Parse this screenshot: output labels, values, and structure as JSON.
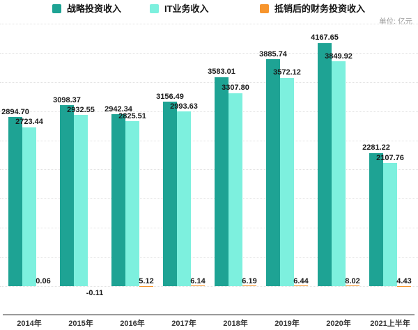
{
  "chart_data": {
    "type": "bar",
    "title": "",
    "unit": "单位: 亿元",
    "categories": [
      "2014年",
      "2015年",
      "2016年",
      "2017年",
      "2018年",
      "2019年",
      "2020年",
      "2021上半年"
    ],
    "series": [
      {
        "name": "战略投资收入",
        "color": "#1ea394",
        "values": [
          2894.7,
          3098.37,
          2942.34,
          3156.49,
          3583.01,
          3885.74,
          4167.65,
          2281.22
        ]
      },
      {
        "name": "IT业务收入",
        "color": "#7df0de",
        "values": [
          2723.44,
          2932.55,
          2825.51,
          2993.63,
          3307.8,
          3572.12,
          3849.92,
          2107.76
        ]
      },
      {
        "name": "抵销后的财务投资收入",
        "color": "#f7952d",
        "values": [
          0.06,
          -0.11,
          5.12,
          6.14,
          6.19,
          6.44,
          8.02,
          4.43
        ]
      }
    ],
    "ylim": [
      -500,
      4500
    ],
    "grid_step": 500,
    "grid": "on",
    "legend_position": "top",
    "value_label_decimals": 2
  }
}
